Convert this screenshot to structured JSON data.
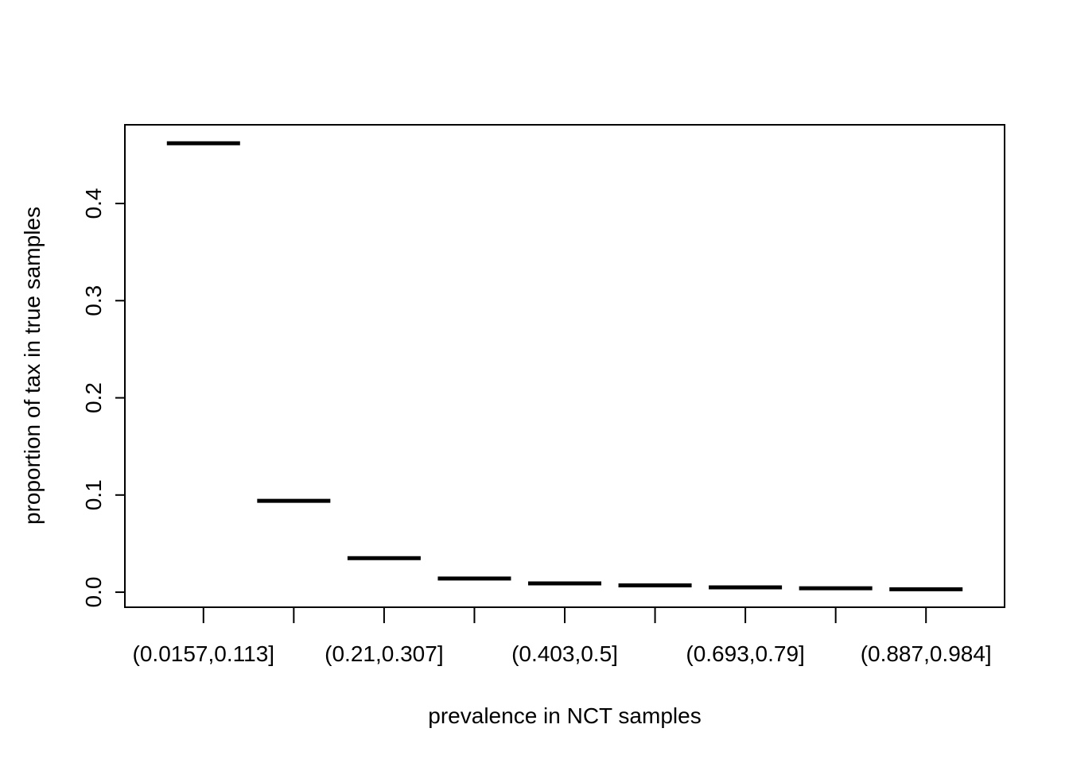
{
  "chart_data": {
    "type": "median-line",
    "x_label": "prevalence in NCT samples",
    "y_label": "proportion of tax in true samples",
    "categories": [
      "(0.0157,0.113]",
      null,
      "(0.21,0.307]",
      null,
      "(0.403,0.5]",
      null,
      "(0.693,0.79]",
      null,
      "(0.887,0.984]"
    ],
    "values": [
      0.462,
      0.094,
      0.035,
      0.014,
      0.009,
      0.007,
      0.005,
      0.004,
      0.003
    ],
    "color": "#000000",
    "ylim": [
      -0.0155,
      0.481
    ],
    "yticks": [
      {
        "value": 0,
        "label": "0.0"
      },
      0.1,
      0.2,
      0.3,
      0.4
    ],
    "grid": false
  }
}
